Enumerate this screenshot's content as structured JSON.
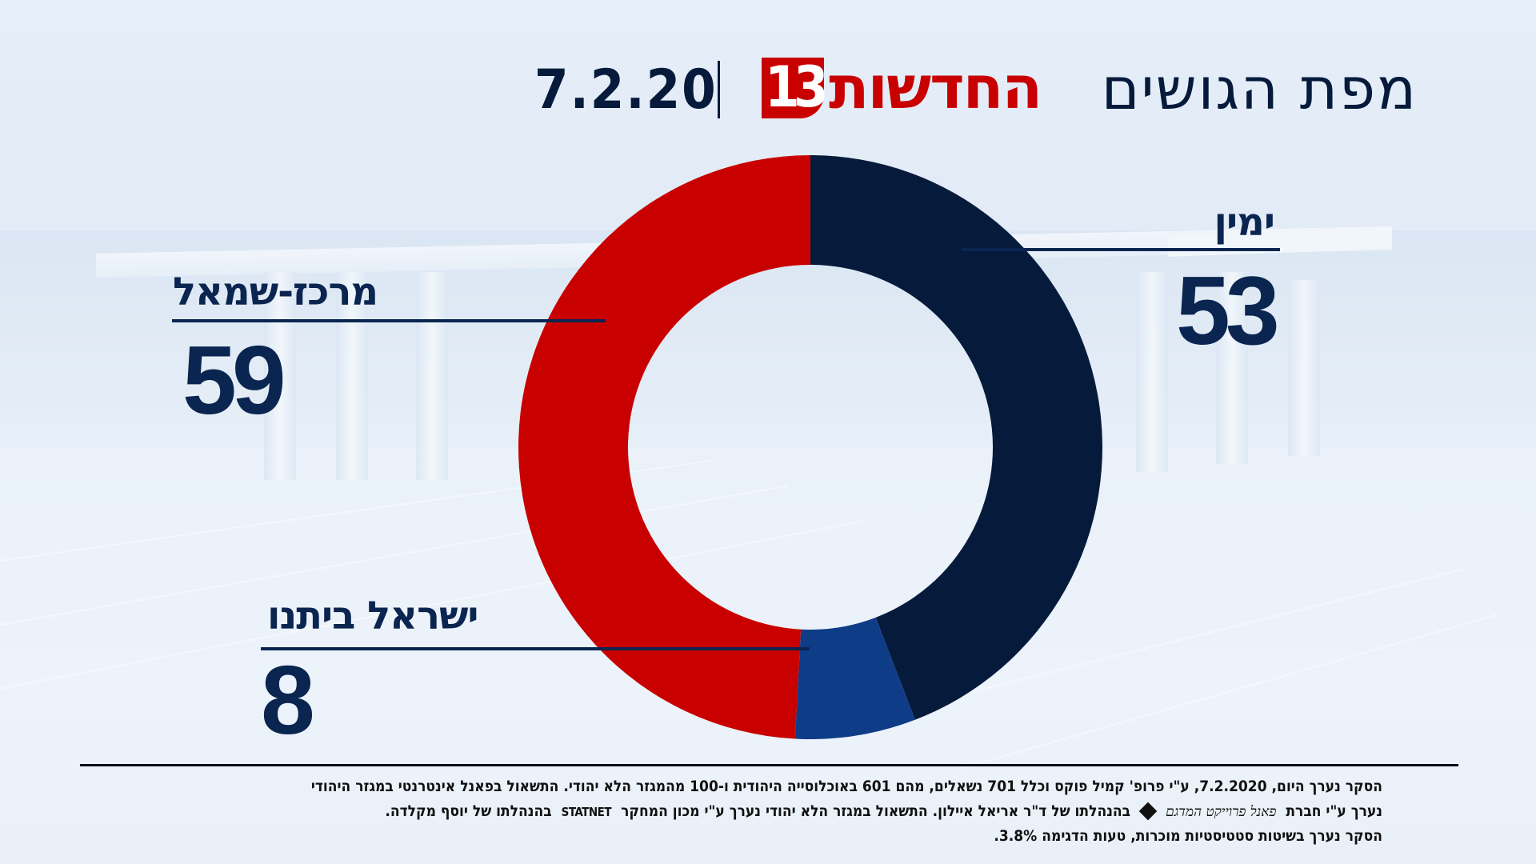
{
  "header": {
    "title": "מפת הגושים",
    "brand_logo_number": "13",
    "brand_name": "החדשות",
    "date": "7.2.20"
  },
  "colors": {
    "right_bloc": "#061a3b",
    "yisrael_beiteinu": "#0f3c87",
    "center_left": "#c80000",
    "text": "#0a2550",
    "background": "#e4edf7"
  },
  "labels": {
    "right": {
      "name": "ימין",
      "value": "53"
    },
    "center_left": {
      "name": "מרכז-שמאל",
      "value": "59"
    },
    "yisrael_beiteinu": {
      "name": "ישראל ביתנו",
      "value": "8"
    }
  },
  "chart_data": {
    "type": "pie",
    "subtype": "donut",
    "title": "מפת הגושים",
    "categories": [
      "ימין",
      "ישראל ביתנו",
      "מרכז-שמאל"
    ],
    "values": [
      53,
      8,
      59
    ],
    "colors": [
      "#061a3b",
      "#0f3c87",
      "#c80000"
    ],
    "start_angle_deg": 0,
    "direction": "clockwise",
    "total": 120,
    "legend": "direct labels with leader lines"
  },
  "footer": {
    "line1": "הסקר נערך היום, 7.2.2020, ע\"י פרופ' קמיל פוקס וכלל 701 נשאלים, מהם 601 באוכלוסייה היהודית ו-100 מהמגזר הלא יהודי. התשאול בפאנל אינטרנטי במגזר היהודי",
    "line2_a": "נערך ע\"י חברת",
    "line2_logo1": "פאנל פרוייקט המדגם",
    "line2_b": "בהנהלתו של ד\"ר אריאל איילון. התשאול במגזר הלא יהודי נערך ע\"י מכון המחקר",
    "line2_logo2": "STATNET",
    "line2_c": "בהנהלתו של יוסף מקלדה.",
    "line3": "הסקר נערך בשיטות סטטיסטיות מוכרות, טעות הדגימה 3.8%."
  }
}
